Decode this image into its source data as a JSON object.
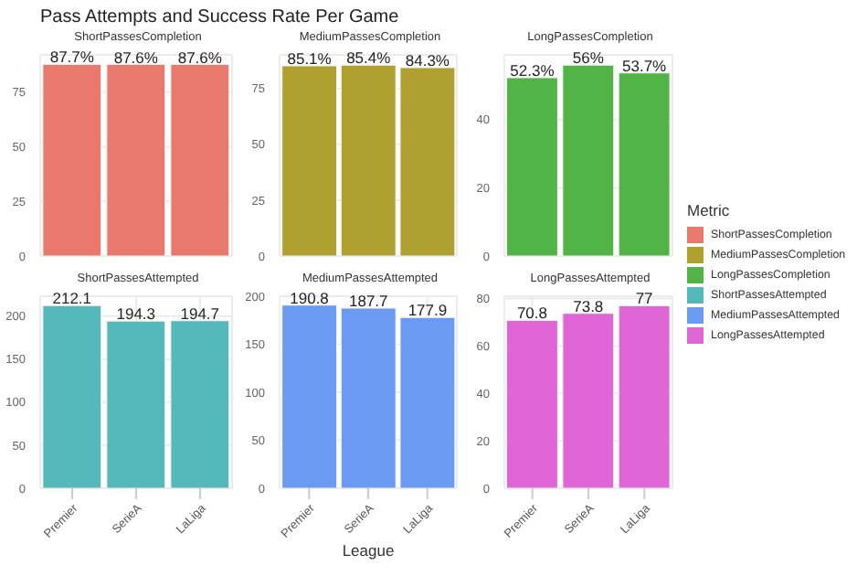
{
  "chart_data": [
    {
      "type": "bar",
      "title": "Pass Attempts and Success Rate Per Game",
      "subtitle": "ShortPassesCompletion",
      "categories": [
        null,
        null,
        null
      ],
      "legend_title": "Metric",
      "legend": "right",
      "grid": true,
      "tick_labels": "y",
      "series": [
        {
          "name": "ShortPassesCompletion",
          "color": "#e8796c",
          "values": [
            87.7,
            87.6,
            87.6
          ],
          "value_labels": [
            "87.7%",
            "87.6%",
            "87.6%"
          ]
        }
      ],
      "ylim": [
        0,
        92
      ],
      "yticks": [
        0,
        25,
        50,
        75
      ]
    },
    {
      "type": "bar",
      "subtitle": "MediumPassesCompletion",
      "categories": [
        null,
        null,
        null
      ],
      "legend": "right",
      "grid": true,
      "tick_labels": "y",
      "series": [
        {
          "name": "MediumPassesCompletion",
          "color": "#b0a030",
          "values": [
            85.1,
            85.4,
            84.3
          ],
          "value_labels": [
            "85.1%",
            "85.4%",
            "84.3%"
          ]
        }
      ],
      "ylim": [
        0,
        90
      ],
      "yticks": [
        0,
        25,
        50,
        75
      ]
    },
    {
      "type": "bar",
      "subtitle": "LongPassesCompletion",
      "categories": [
        null,
        null,
        null
      ],
      "legend": "right",
      "grid": true,
      "tick_labels": "y",
      "series": [
        {
          "name": "LongPassesCompletion",
          "color": "#52b447",
          "values": [
            52.3,
            56,
            53.7
          ],
          "value_labels": [
            "52.3%",
            "56%",
            "53.7%"
          ]
        }
      ],
      "ylim": [
        0,
        59
      ],
      "yticks": [
        0,
        20,
        40
      ]
    },
    {
      "type": "bar",
      "subtitle": "ShortPassesAttempted",
      "categories": [
        "Premier",
        "SerieA",
        "LaLiga"
      ],
      "legend": "right",
      "grid": true,
      "data_labels": true,
      "series": [
        {
          "name": "ShortPassesAttempted",
          "color": "#55b8bb",
          "values": [
            212.1,
            194.3,
            194.7
          ]
        }
      ],
      "ylim": [
        0,
        223
      ],
      "yticks": [
        0,
        50,
        100,
        150,
        200
      ]
    },
    {
      "type": "bar",
      "subtitle": "MediumPassesAttempted",
      "xlabel": "League",
      "categories": [
        "Premier",
        "SerieA",
        "LaLiga"
      ],
      "legend": "right",
      "grid": true,
      "data_labels": true,
      "series": [
        {
          "name": "MediumPassesAttempted",
          "color": "#6b9af2",
          "values": [
            190.8,
            187.7,
            177.9
          ]
        }
      ],
      "ylim": [
        0,
        200
      ],
      "yticks": [
        0,
        50,
        100,
        150,
        200
      ]
    },
    {
      "type": "bar",
      "subtitle": "LongPassesAttempted",
      "categories": [
        "Premier",
        "SerieA",
        "LaLiga"
      ],
      "legend": "right",
      "grid": true,
      "data_labels": true,
      "series": [
        {
          "name": "LongPassesAttempted",
          "color": "#e066d8",
          "values": [
            70.8,
            73.8,
            77
          ]
        }
      ],
      "ylim": [
        0,
        81
      ],
      "yticks": [
        0,
        20,
        40,
        60,
        80
      ]
    }
  ]
}
